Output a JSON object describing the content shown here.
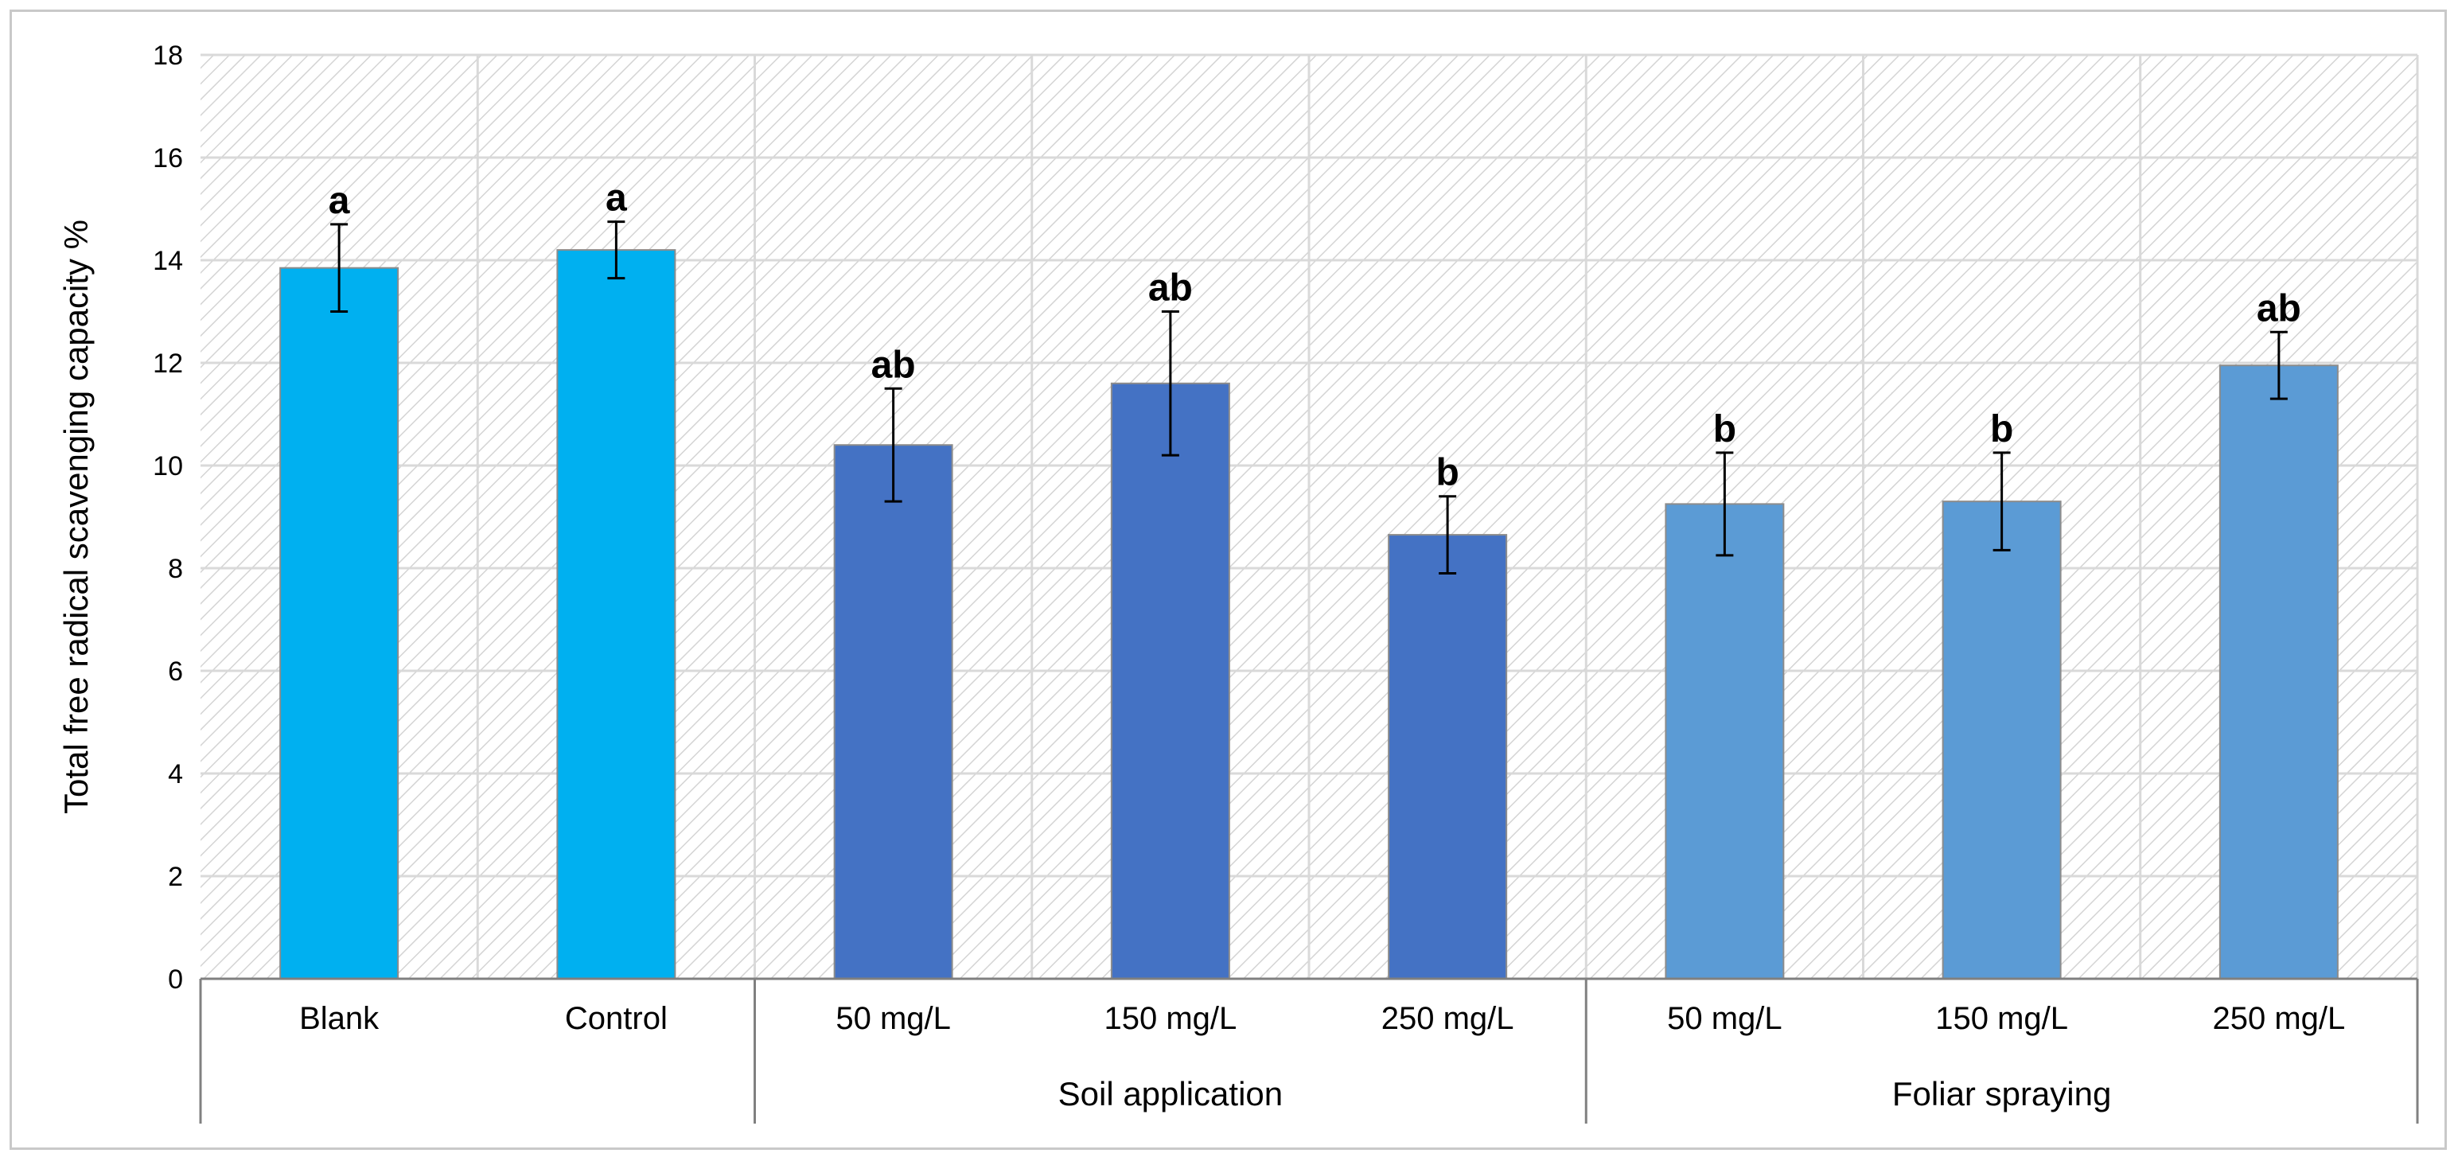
{
  "chart_data": {
    "type": "bar",
    "title": "",
    "xlabel": "",
    "ylabel": "Total free radical scavenging capacity %",
    "ylim": [
      0,
      18
    ],
    "yticks": [
      "0",
      "2",
      "4",
      "6",
      "8",
      "10",
      "12",
      "14",
      "16",
      "18"
    ],
    "grid": true,
    "background": "diagonal hatch",
    "categories": [
      "Blank",
      "Control",
      "50 mg/L",
      "150 mg/L",
      "250 mg/L",
      "50 mg/L",
      "150 mg/L",
      "250 mg/L"
    ],
    "groups": [
      {
        "label": "",
        "categories": [
          "Blank",
          "Control"
        ]
      },
      {
        "label": "Soil application",
        "categories": [
          "50 mg/L",
          "150 mg/L",
          "250 mg/L"
        ]
      },
      {
        "label": "Foliar spraying",
        "categories": [
          "50 mg/L",
          "150 mg/L",
          "250 mg/L"
        ]
      }
    ],
    "values": [
      13.85,
      14.2,
      10.4,
      11.6,
      8.65,
      9.25,
      9.3,
      11.95
    ],
    "errors": [
      0.85,
      0.55,
      1.1,
      1.4,
      0.75,
      1.0,
      0.95,
      0.65
    ],
    "significance": [
      "a",
      "a",
      "ab",
      "ab",
      "b",
      "b",
      "b",
      "ab"
    ],
    "colors": [
      "#00b0f0",
      "#00b0f0",
      "#4472c4",
      "#4472c4",
      "#4472c4",
      "#5b9bd5",
      "#5b9bd5",
      "#5b9bd5"
    ]
  }
}
